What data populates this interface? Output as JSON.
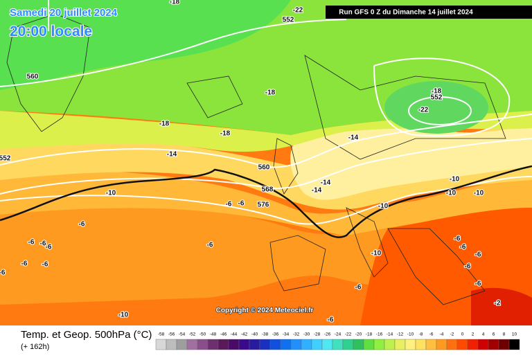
{
  "header": {
    "date": "Samedi 20 juillet 2024",
    "time": "20:00 locale",
    "run": "Run GFS 0 Z du Dimanche 14 juillet 2024"
  },
  "map": {
    "copyright": "Copyright © 2024 Meteociel.fr",
    "labels": [
      -18,
      -22,
      552,
      560,
      -18,
      -18,
      552,
      -22,
      -18,
      -18,
      -14,
      -14,
      552,
      560,
      -14,
      -14,
      568,
      -10,
      -10,
      -10,
      -10,
      -6,
      -6,
      576,
      -10,
      -6,
      -6,
      -6,
      -6,
      -6,
      -6,
      -6,
      -6,
      -10,
      -6,
      -2,
      -10,
      -6,
      -6,
      -6,
      -6,
      -6,
      -6
    ]
  },
  "footer": {
    "title": "Temp. et Geop. 500hPa (°C)",
    "lead": "(+ 162h)"
  },
  "legend": {
    "labels": [
      -58,
      -56,
      -54,
      -52,
      -50,
      -48,
      -46,
      -44,
      -42,
      -40,
      -38,
      -36,
      -34,
      -32,
      -30,
      -28,
      -26,
      -24,
      -22,
      -20,
      -18,
      -16,
      -14,
      -12,
      -10,
      -8,
      -6,
      -4,
      -2,
      0,
      2,
      4,
      6,
      8,
      10
    ],
    "colors": [
      "#d8d8d8",
      "#bdbdbd",
      "#9e9e9e",
      "#a070a0",
      "#8a4f8a",
      "#6e2f6e",
      "#5a1a5a",
      "#4a0a6a",
      "#3a0a8a",
      "#2a1aa0",
      "#1a30c0",
      "#1050e0",
      "#1070f0",
      "#2090ff",
      "#30b0ff",
      "#40d0ff",
      "#50e8f0",
      "#40e0c0",
      "#30d090",
      "#30c060",
      "#60e040",
      "#90f040",
      "#c0f050",
      "#e8f060",
      "#fff080",
      "#ffe060",
      "#ffc040",
      "#ff9a20",
      "#ff7010",
      "#ff4a00",
      "#f02000",
      "#d00000",
      "#a00000",
      "#700000",
      "#000000"
    ]
  }
}
